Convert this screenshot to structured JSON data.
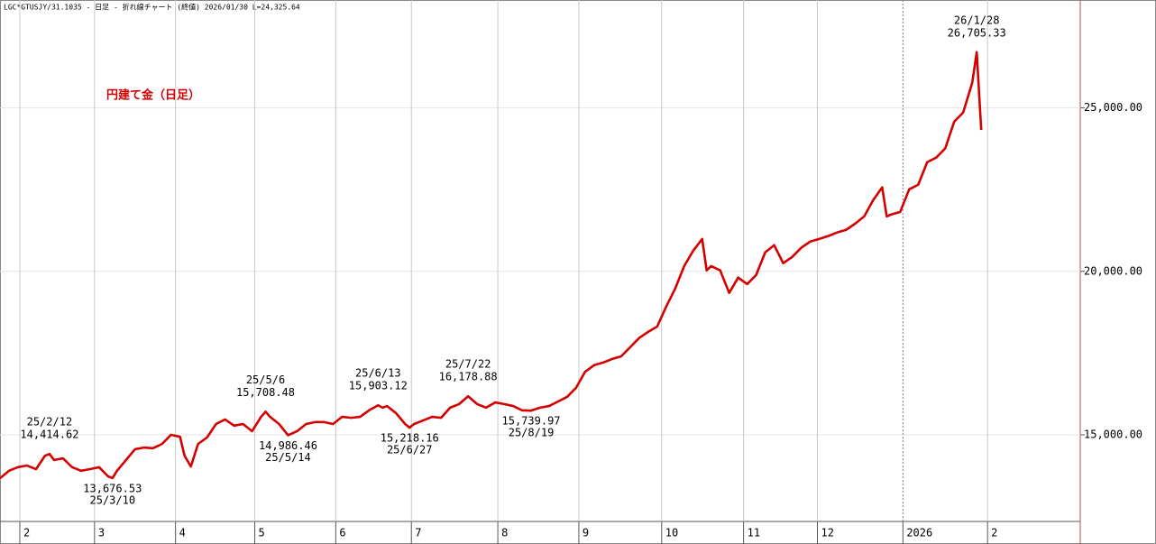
{
  "chart_data": {
    "type": "line",
    "header": "LGC*GTUSJY/31.1035 - 日足 - 折れ線チャート (終値)  2026/01/30 L=24,325.64",
    "grid": true,
    "legend": "top-left",
    "xlim": [
      0,
      120
    ],
    "ylim": [
      12350,
      28300
    ],
    "xticks": [
      {
        "value": 2.2,
        "label": "2"
      },
      {
        "value": 10.5,
        "label": "3"
      },
      {
        "value": 19.5,
        "label": "4"
      },
      {
        "value": 28.3,
        "label": "5"
      },
      {
        "value": 37.3,
        "label": "6"
      },
      {
        "value": 45.7,
        "label": "7"
      },
      {
        "value": 55.3,
        "label": "8"
      },
      {
        "value": 64.3,
        "label": "9"
      },
      {
        "value": 73.5,
        "label": "10"
      },
      {
        "value": 82.6,
        "label": "11"
      },
      {
        "value": 90.8,
        "label": "12"
      },
      {
        "value": 100.3,
        "label": "2026",
        "dashed": true
      },
      {
        "value": 109.7,
        "label": "2"
      }
    ],
    "yticks": [
      {
        "value": 15000,
        "label": "15,000.00"
      },
      {
        "value": 20000,
        "label": "20,000.00"
      },
      {
        "value": 25000,
        "label": "25,000.00"
      }
    ],
    "series": [
      {
        "name": "円建て金（日足）",
        "color": "#d40000",
        "x": [
          0,
          1,
          2,
          3,
          4,
          5,
          5.5,
          6,
          7,
          8,
          9,
          10,
          11,
          12,
          12.5,
          13,
          14,
          15,
          16,
          17,
          18,
          19,
          20,
          20.5,
          21.2,
          22,
          23,
          24,
          25,
          26,
          27,
          28,
          29,
          29.5,
          30,
          31,
          32,
          33,
          34,
          35,
          36,
          37,
          38,
          39,
          40,
          41,
          42,
          42.5,
          43,
          44,
          45,
          45.5,
          46,
          47,
          48,
          49,
          50,
          51,
          52,
          53,
          54,
          55,
          56,
          57,
          58,
          59,
          60,
          61,
          62,
          63,
          64,
          65,
          66,
          67,
          68,
          69,
          70,
          71,
          72,
          73,
          74,
          75,
          76,
          77,
          78,
          78.5,
          79,
          80,
          81,
          82,
          83,
          84,
          85,
          86,
          87,
          88,
          89,
          90,
          91,
          92,
          93,
          94,
          95,
          96,
          97,
          98,
          98.5,
          99,
          100,
          101,
          102,
          103,
          104,
          105,
          106,
          107,
          108,
          108.5,
          109
        ],
        "values": [
          13670,
          13900,
          14010,
          14060,
          13950,
          14360,
          14414.62,
          14230,
          14280,
          14010,
          13900,
          13950,
          14010,
          13730,
          13676.53,
          13900,
          14230,
          14560,
          14610,
          14590,
          14720,
          15000,
          14940,
          14360,
          14030,
          14720,
          14920,
          15330,
          15470,
          15280,
          15330,
          15110,
          15550,
          15708.48,
          15550,
          15330,
          14986.46,
          15110,
          15330,
          15390,
          15390,
          15330,
          15550,
          15520,
          15550,
          15750,
          15903.12,
          15830,
          15880,
          15660,
          15330,
          15218.16,
          15330,
          15440,
          15550,
          15520,
          15830,
          15940,
          16178.88,
          15940,
          15830,
          15990,
          15940,
          15880,
          15750,
          15739.97,
          15830,
          15880,
          16020,
          16160,
          16440,
          16930,
          17130,
          17210,
          17320,
          17400,
          17680,
          17960,
          18150,
          18310,
          18920,
          19470,
          20160,
          20630,
          20990,
          20030,
          20160,
          20030,
          19340,
          19810,
          19610,
          19890,
          20580,
          20800,
          20250,
          20440,
          20720,
          20910,
          20990,
          21080,
          21190,
          21270,
          21460,
          21680,
          22180,
          22570,
          21680,
          21740,
          21820,
          22510,
          22650,
          23340,
          23480,
          23760,
          24580,
          24860,
          25770,
          26705.33,
          24325.64
        ]
      }
    ],
    "annotations": [
      {
        "x": 5.5,
        "value": 14414.62,
        "value_label": "14,414.62",
        "date": "25/2/12",
        "position": "above"
      },
      {
        "x": 12.5,
        "value": 13676.53,
        "value_label": "13,676.53",
        "date": "25/3/10",
        "position": "below"
      },
      {
        "x": 29.5,
        "value": 15708.48,
        "value_label": "15,708.48",
        "date": "25/5/6",
        "position": "above"
      },
      {
        "x": 32,
        "value": 14986.46,
        "value_label": "14,986.46",
        "date": "25/5/14",
        "position": "below"
      },
      {
        "x": 42,
        "value": 15903.12,
        "value_label": "15,903.12",
        "date": "25/6/13",
        "position": "above"
      },
      {
        "x": 45.5,
        "value": 15218.16,
        "value_label": "15,218.16",
        "date": "25/6/27",
        "position": "below"
      },
      {
        "x": 52,
        "value": 16178.88,
        "value_label": "16,178.88",
        "date": "25/7/22",
        "position": "above"
      },
      {
        "x": 59,
        "value": 15739.97,
        "value_label": "15,739.97",
        "date": "25/8/19",
        "position": "below"
      },
      {
        "x": 108.5,
        "value": 26705.33,
        "value_label": "26,705.33",
        "date": "26/1/28",
        "position": "above"
      }
    ]
  }
}
